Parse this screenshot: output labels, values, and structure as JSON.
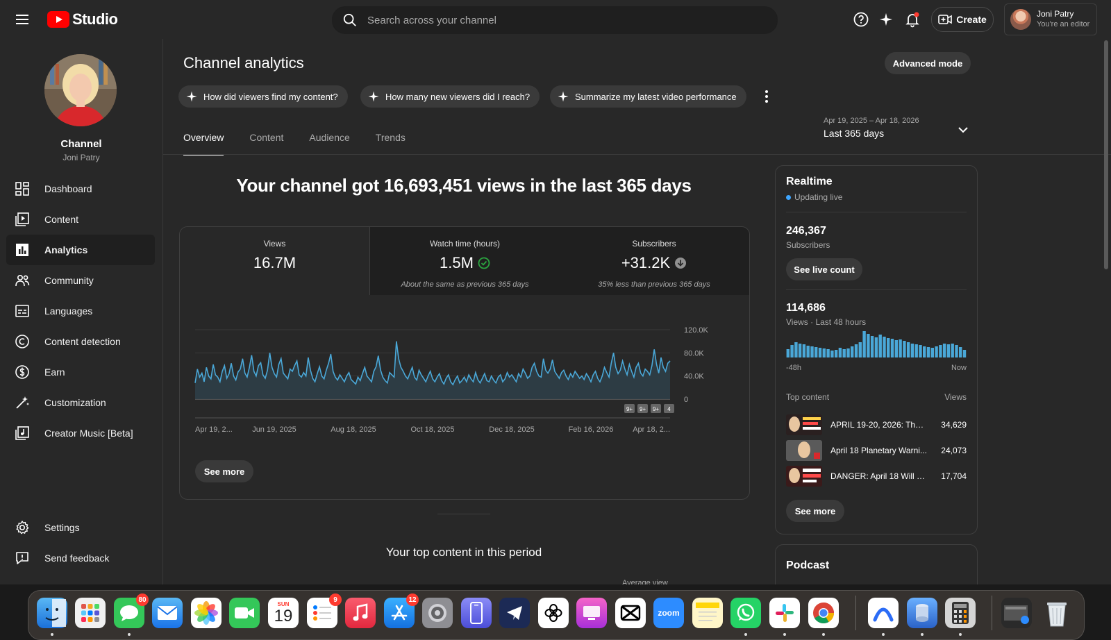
{
  "header": {
    "logo_text": "Studio",
    "search_placeholder": "Search across your channel",
    "create_label": "Create",
    "account_name": "Joni Patry",
    "account_role": "You're an editor"
  },
  "sidebar": {
    "channel_title": "Channel",
    "channel_name": "Joni Patry",
    "items": [
      {
        "label": "Dashboard",
        "icon": "dashboard-icon"
      },
      {
        "label": "Content",
        "icon": "content-icon"
      },
      {
        "label": "Analytics",
        "icon": "analytics-icon",
        "active": true
      },
      {
        "label": "Community",
        "icon": "community-icon"
      },
      {
        "label": "Languages",
        "icon": "languages-icon"
      },
      {
        "label": "Content detection",
        "icon": "content-detection-icon"
      },
      {
        "label": "Earn",
        "icon": "earn-icon"
      },
      {
        "label": "Customization",
        "icon": "customization-icon"
      },
      {
        "label": "Creator Music [Beta]",
        "icon": "creator-music-icon"
      }
    ],
    "settings_label": "Settings",
    "feedback_label": "Send feedback"
  },
  "main": {
    "title": "Channel analytics",
    "advanced_mode": "Advanced mode",
    "chips": [
      "How did viewers find my content?",
      "How many new viewers did I reach?",
      "Summarize my latest video performance"
    ],
    "tabs": [
      "Overview",
      "Content",
      "Audience",
      "Trends"
    ],
    "date_range": "Apr 19, 2025 – Apr 18, 2026",
    "date_preset": "Last 365 days",
    "headline": "Your channel got 16,693,451 views in the last 365 days",
    "metrics": [
      {
        "label": "Views",
        "value": "16.7M",
        "note": ""
      },
      {
        "label": "Watch time (hours)",
        "value": "1.5M",
        "note": "About the same as previous 365 days"
      },
      {
        "label": "Subscribers",
        "value": "+31.2K",
        "note": "35% less than previous 365 days"
      }
    ],
    "see_more": "See more",
    "top_content_title": "Your top content in this period",
    "average_view_label": "Average view"
  },
  "chart_data": {
    "type": "area",
    "series_color": "#4aa8d8",
    "y_ticks": [
      "120.0K",
      "80.0K",
      "40.0K",
      "0"
    ],
    "ylim": [
      0,
      120000
    ],
    "x_tick_labels": [
      "Apr 19, 2...",
      "Jun 19, 2025",
      "Aug 18, 2025",
      "Oct 18, 2025",
      "Dec 18, 2025",
      "Feb 16, 2026",
      "Apr 18, 2..."
    ],
    "markers": [
      "9+",
      "9+",
      "9+",
      "4"
    ],
    "values": [
      28000,
      52000,
      38000,
      45000,
      30000,
      55000,
      40000,
      35000,
      60000,
      42000,
      38000,
      30000,
      48000,
      58000,
      36000,
      44000,
      62000,
      40000,
      33000,
      47000,
      52000,
      70000,
      45000,
      38000,
      55000,
      76000,
      48000,
      40000,
      58000,
      63000,
      42000,
      36000,
      50000,
      80000,
      55000,
      44000,
      38000,
      60000,
      70000,
      45000,
      40000,
      35000,
      52000,
      48000,
      58000,
      66000,
      42000,
      38000,
      46000,
      40000,
      72000,
      50000,
      36000,
      30000,
      44000,
      56000,
      40000,
      35000,
      50000,
      62000,
      78000,
      48000,
      38000,
      33000,
      42000,
      36000,
      30000,
      40000,
      46000,
      34000,
      30000,
      26000,
      38000,
      32000,
      44000,
      55000,
      40000,
      35000,
      30000,
      48000,
      56000,
      75000,
      50000,
      38000,
      32000,
      28000,
      46000,
      42000,
      38000,
      100000,
      70000,
      55000,
      48000,
      40000,
      35000,
      45000,
      55000,
      38000,
      33000,
      50000,
      42000,
      36000,
      30000,
      40000,
      48000,
      35000,
      30000,
      38000,
      44000,
      32000,
      26000,
      36000,
      42000,
      30000,
      25000,
      34000,
      40000,
      28000,
      32000,
      38000,
      30000,
      42000,
      35000,
      30000,
      46000,
      34000,
      28000,
      36000,
      44000,
      32000,
      30000,
      40000,
      33000,
      28000,
      38000,
      42000,
      30000,
      35000,
      46000,
      38000,
      42000,
      36000,
      30000,
      44000,
      38000,
      52000,
      45000,
      36000,
      40000,
      55000,
      62000,
      48000,
      40000,
      38000,
      70000,
      50000,
      45000,
      52000,
      68000,
      48000,
      42000,
      36000,
      46000,
      50000,
      40000,
      34000,
      44000,
      38000,
      48000,
      42000,
      36000,
      40000,
      34000,
      44000,
      38000,
      30000,
      42000,
      48000,
      36000,
      30000,
      40000,
      55000,
      46000,
      38000,
      62000,
      80000,
      55000,
      44000,
      50000,
      66000,
      52000,
      42000,
      60000,
      48000,
      38000,
      55000,
      62000,
      45000,
      40000,
      52000,
      48000,
      42000,
      58000,
      86000,
      60000,
      45000,
      72000,
      55000,
      48000,
      62000,
      66000
    ],
    "realtime": {
      "bars": [
        12,
        18,
        22,
        20,
        19,
        17,
        16,
        15,
        14,
        13,
        12,
        10,
        11,
        14,
        12,
        13,
        16,
        19,
        22,
        38,
        34,
        31,
        29,
        33,
        30,
        28,
        27,
        25,
        26,
        24,
        22,
        20,
        19,
        18,
        16,
        15,
        14,
        16,
        18,
        20,
        19,
        20,
        18,
        15,
        11
      ],
      "start_label": "-48h",
      "end_label": "Now"
    }
  },
  "realtime": {
    "title": "Realtime",
    "status": "Updating live",
    "subscribers_value": "246,367",
    "subscribers_label": "Subscribers",
    "see_live_count": "See live count",
    "views_value": "114,686",
    "views_label": "Views · Last 48 hours",
    "top_content_label": "Top content",
    "views_col_label": "Views",
    "top_content": [
      {
        "title": "APRIL 19-20, 2026: The ...",
        "views": "34,629"
      },
      {
        "title": "April 18 Planetary Warni...",
        "views": "24,073"
      },
      {
        "title": "DANGER: April 18 Will B...",
        "views": "17,704"
      }
    ],
    "see_more": "See more"
  },
  "podcast": {
    "title": "Podcast"
  },
  "dock": {
    "messages_badge": "80",
    "calendar_month": "SUN",
    "calendar_day": "19",
    "reminders_badge": "9",
    "appstore_badge": "12",
    "zoom_label": "zoom"
  }
}
